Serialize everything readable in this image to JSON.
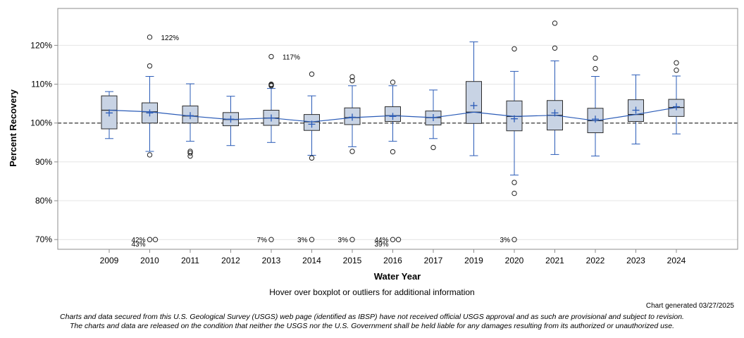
{
  "chart_data": {
    "type": "box",
    "xlabel": "Water Year",
    "ylabel": "Percent Recovery",
    "ylim": [
      67.5,
      129.5
    ],
    "yticks": [
      70,
      80,
      90,
      100,
      110,
      120
    ],
    "ytick_labels": [
      "70%",
      "80%",
      "90%",
      "100%",
      "110%",
      "120%"
    ],
    "reference_line": 100,
    "categories": [
      "2009",
      "2010",
      "2011",
      "2012",
      "2013",
      "2014",
      "2015",
      "2016",
      "2017",
      "2019",
      "2020",
      "2021",
      "2022",
      "2023",
      "2024"
    ],
    "boxes": [
      {
        "year": "2009",
        "whisker_low": 96.0,
        "q1": 98.5,
        "median": 103.3,
        "q3": 107.0,
        "whisker_high": 108.1,
        "mean": 102.6,
        "outliers": []
      },
      {
        "year": "2010",
        "whisker_low": 92.7,
        "q1": 100.0,
        "median": 102.9,
        "q3": 105.2,
        "whisker_high": 112.0,
        "mean": 102.6,
        "outliers": [
          91.8,
          114.7,
          122.1
        ]
      },
      {
        "year": "2011",
        "whisker_low": 95.3,
        "q1": 100.0,
        "median": 101.8,
        "q3": 104.4,
        "whisker_high": 110.1,
        "mean": 101.9,
        "outliers": [
          91.5,
          92.3,
          92.7
        ]
      },
      {
        "year": "2012",
        "whisker_low": 94.2,
        "q1": 99.3,
        "median": 100.9,
        "q3": 102.7,
        "whisker_high": 106.9,
        "mean": 101.0,
        "outliers": []
      },
      {
        "year": "2013",
        "whisker_low": 95.0,
        "q1": 99.4,
        "median": 101.3,
        "q3": 103.3,
        "whisker_high": 108.9,
        "mean": 101.3,
        "outliers": [
          109.6,
          109.8,
          110.0,
          117.1
        ]
      },
      {
        "year": "2014",
        "whisker_low": 91.7,
        "q1": 98.1,
        "median": 100.3,
        "q3": 102.2,
        "whisker_high": 107.0,
        "mean": 99.7,
        "outliers": [
          91.0,
          112.6
        ]
      },
      {
        "year": "2015",
        "whisker_low": 93.9,
        "q1": 99.6,
        "median": 101.4,
        "q3": 103.9,
        "whisker_high": 109.6,
        "mean": 101.5,
        "outliers": [
          92.7,
          110.9,
          111.9
        ]
      },
      {
        "year": "2016",
        "whisker_low": 95.3,
        "q1": 100.4,
        "median": 101.9,
        "q3": 104.2,
        "whisker_high": 109.6,
        "mean": 101.7,
        "outliers": [
          92.6,
          110.5
        ]
      },
      {
        "year": "2017",
        "whisker_low": 96.0,
        "q1": 99.5,
        "median": 101.4,
        "q3": 103.1,
        "whisker_high": 108.5,
        "mean": 101.4,
        "outliers": [
          93.7
        ]
      },
      {
        "year": "2019",
        "whisker_low": 91.6,
        "q1": 99.9,
        "median": 102.8,
        "q3": 110.7,
        "whisker_high": 120.9,
        "mean": 104.5,
        "outliers": []
      },
      {
        "year": "2020",
        "whisker_low": 86.6,
        "q1": 98.0,
        "median": 101.7,
        "q3": 105.7,
        "whisker_high": 113.3,
        "mean": 101.1,
        "outliers": [
          84.7,
          81.9,
          119.1
        ]
      },
      {
        "year": "2021",
        "whisker_low": 91.9,
        "q1": 98.2,
        "median": 102.0,
        "q3": 105.8,
        "whisker_high": 116.0,
        "mean": 102.6,
        "outliers": [
          119.3,
          125.7
        ]
      },
      {
        "year": "2022",
        "whisker_low": 91.5,
        "q1": 97.5,
        "median": 100.6,
        "q3": 103.8,
        "whisker_high": 112.0,
        "mean": 101.0,
        "outliers": [
          114.0,
          116.7
        ]
      },
      {
        "year": "2023",
        "whisker_low": 94.6,
        "q1": 100.4,
        "median": 102.2,
        "q3": 106.0,
        "whisker_high": 112.4,
        "mean": 103.3,
        "outliers": []
      },
      {
        "year": "2024",
        "whisker_low": 97.2,
        "q1": 101.7,
        "median": 104.0,
        "q3": 106.1,
        "whisker_high": 112.1,
        "mean": 104.2,
        "outliers": [
          113.6,
          115.5
        ]
      }
    ],
    "offscale_markers": [
      {
        "year": "2010",
        "count": 2,
        "labels": [
          "42%",
          "43%"
        ]
      },
      {
        "year": "2013",
        "count": 1,
        "labels": [
          "7%"
        ]
      },
      {
        "year": "2014",
        "count": 1,
        "labels": [
          "3%"
        ]
      },
      {
        "year": "2015",
        "count": 1,
        "labels": [
          "3%"
        ]
      },
      {
        "year": "2016",
        "count": 2,
        "labels": [
          "44%",
          "39%"
        ]
      },
      {
        "year": "2020",
        "count": 1,
        "labels": [
          "3%"
        ]
      }
    ],
    "offscale_value": 70,
    "high_annotations": [
      {
        "year": "2010",
        "value": 122.1,
        "label": "122%"
      },
      {
        "year": "2013",
        "value": 117.1,
        "label": "117%"
      }
    ],
    "colors": {
      "box_fill": "#c8d3e4",
      "box_edge": "#2b2b2b",
      "whisker": "#2a5bb7",
      "mean_line": "#2a5bb7",
      "mean_marker": "#2a5bb7",
      "grid": "#e4e4e4",
      "reference": "#555555",
      "frame": "#8c8c8c"
    }
  },
  "footer": {
    "hover_note": "Hover over boxplot or outliers for additional information",
    "generated": "Chart generated 03/27/2025",
    "disclaimer_line1": "Charts and data secured from this U.S. Geological Survey (USGS) web page (identified as IBSP) have not received official USGS approval and as such are provisional and subject to revision.",
    "disclaimer_line2": "The charts and data are released on the condition that neither the USGS nor the U.S. Government shall be held liable for any damages resulting from its authorized or unauthorized use."
  }
}
